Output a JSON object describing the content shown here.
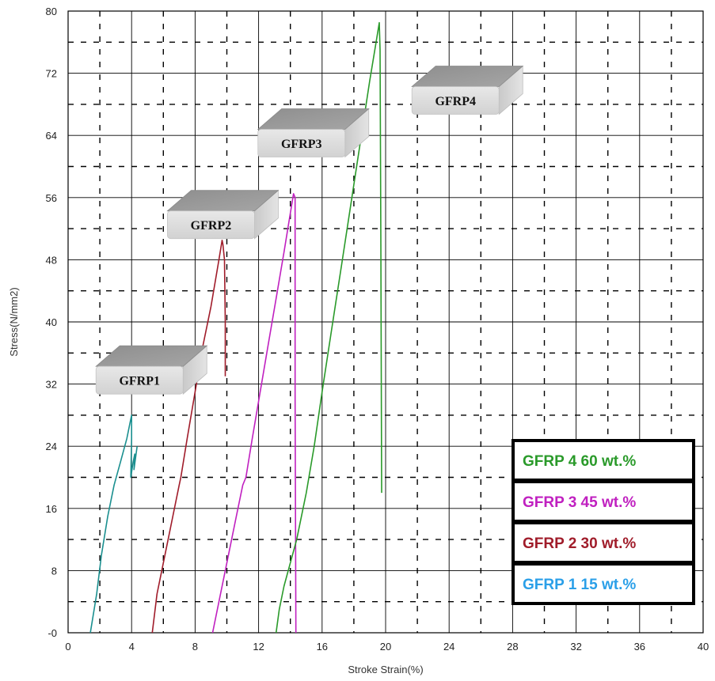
{
  "chart_data": {
    "type": "line",
    "title": "",
    "xlabel": "Stroke Strain(%)",
    "ylabel": "Stress(N/mm2)",
    "xlim": [
      0,
      40
    ],
    "ylim": [
      0,
      80
    ],
    "x_ticks": [
      "0",
      "4",
      "8",
      "12",
      "16",
      "20",
      "24",
      "28",
      "32",
      "36",
      "40"
    ],
    "y_ticks": [
      "-0",
      "8",
      "16",
      "24",
      "32",
      "40",
      "48",
      "56",
      "64",
      "72",
      "80"
    ],
    "grid": true,
    "legend_position": "bottom-right",
    "series": [
      {
        "name": "GFRP 1 15 wt.%",
        "color": "#1a8f8f",
        "legend_color": "#2a9fe8",
        "x": [
          1.4,
          1.8,
          2.1,
          2.5,
          2.9,
          3.3,
          3.7,
          3.9,
          4.0,
          4.0,
          3.95,
          4.1,
          4.2,
          4.15,
          4.35
        ],
        "y": [
          0,
          5,
          10,
          15,
          19,
          22,
          25,
          27,
          28,
          25,
          20,
          22,
          23,
          21,
          24
        ]
      },
      {
        "name": "GFRP 2 30 wt.%",
        "color": "#a01c2a",
        "legend_color": "#a01c2a",
        "x": [
          5.3,
          5.6,
          6.1,
          6.6,
          7.0,
          7.1,
          7.5,
          8.0,
          8.5,
          9.0,
          9.5,
          9.7,
          9.75,
          9.85,
          9.9,
          9.9
        ],
        "y": [
          0,
          5,
          10,
          15,
          19,
          20,
          25,
          31,
          37,
          42,
          48,
          50.5,
          50,
          48,
          40,
          33
        ]
      },
      {
        "name": "GFRP 3 45 wt.%",
        "color": "#c020c0",
        "legend_color": "#c020c0",
        "x": [
          9.1,
          9.6,
          10.1,
          10.6,
          11.0,
          11.2,
          11.6,
          12.1,
          12.6,
          13.1,
          13.6,
          14.0,
          14.2,
          14.3,
          14.3,
          14.35
        ],
        "y": [
          0,
          5,
          10,
          15,
          19,
          20,
          25,
          31,
          37,
          43,
          49,
          54,
          56.5,
          56,
          30,
          0
        ]
      },
      {
        "name": "GFRP 4 60 wt.%",
        "color": "#2a9a2a",
        "legend_color": "#2a9a2a",
        "x": [
          13.1,
          13.3,
          13.6,
          14.0,
          14.4,
          14.5,
          15.0,
          15.5,
          16.0,
          16.6,
          17.2,
          17.8,
          18.4,
          19.0,
          19.4,
          19.6,
          19.65,
          19.7,
          19.75
        ],
        "y": [
          0,
          3,
          6,
          9,
          12,
          13,
          18,
          24,
          31,
          39,
          47,
          55,
          63,
          71,
          76,
          78.5,
          75,
          50,
          18
        ]
      }
    ],
    "annotations": [
      {
        "text": "GFRP1",
        "x": 4.5,
        "y": 32.5
      },
      {
        "text": "GFRP2",
        "x": 9.0,
        "y": 52.5
      },
      {
        "text": "GFRP3",
        "x": 14.7,
        "y": 63.0
      },
      {
        "text": "GFRP4",
        "x": 24.4,
        "y": 68.5
      }
    ]
  }
}
